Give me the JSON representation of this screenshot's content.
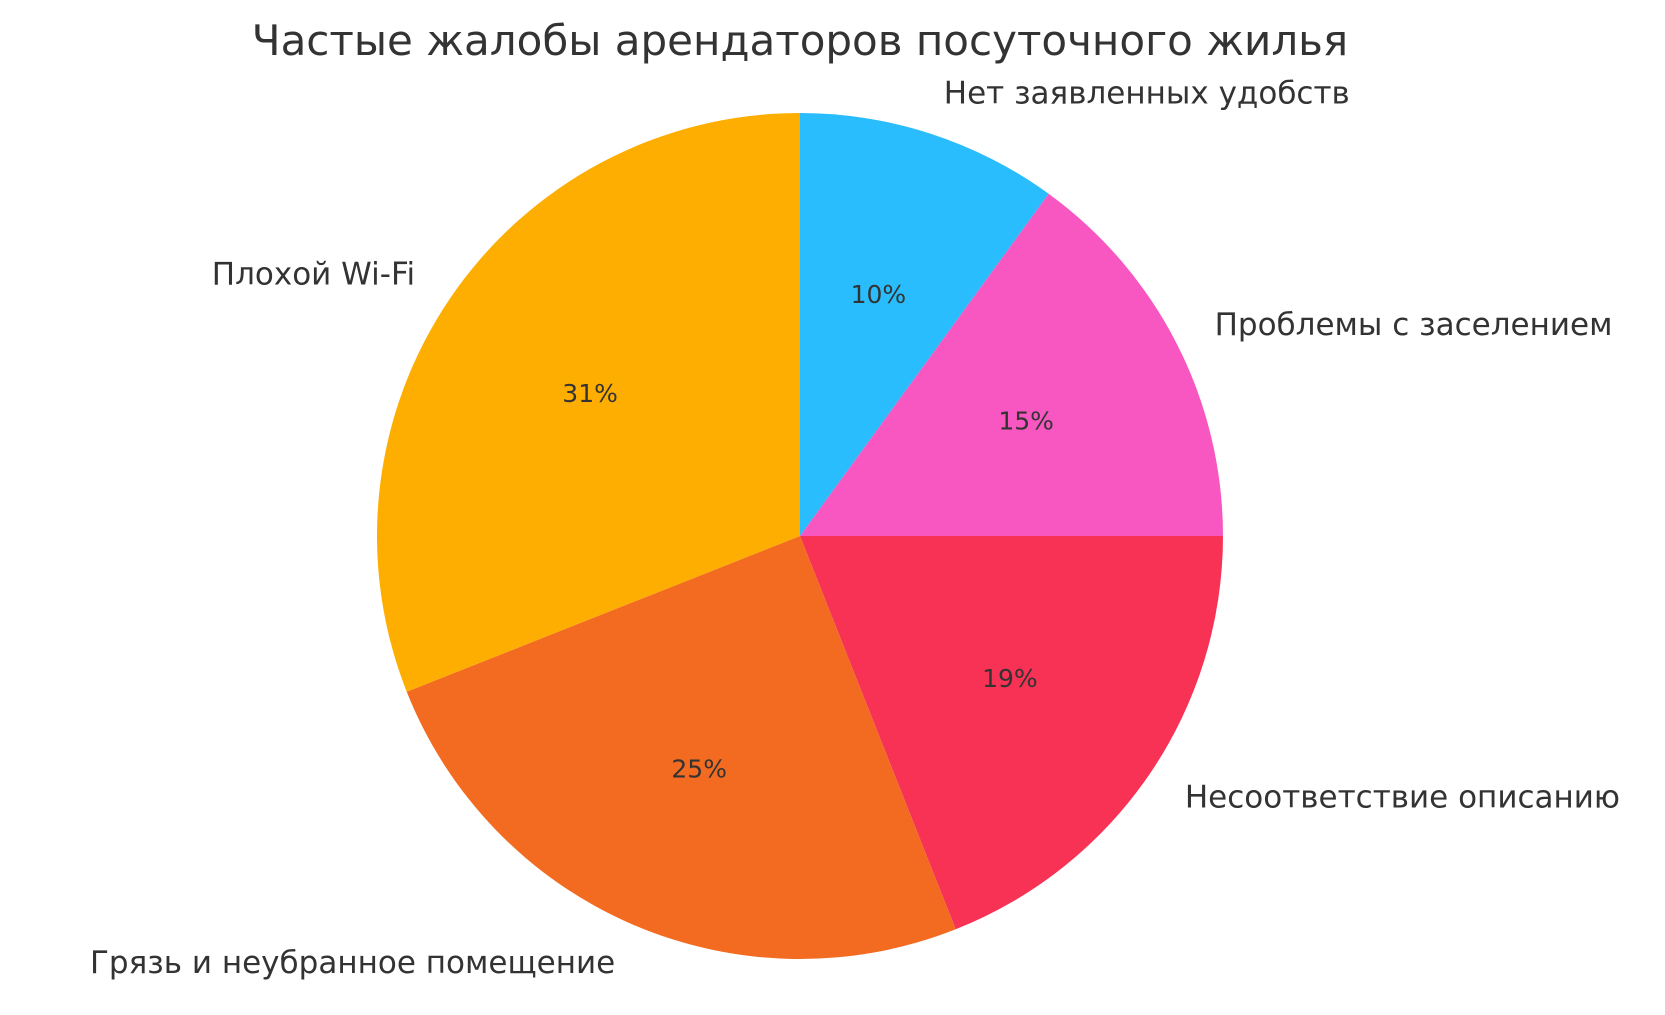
{
  "chart_data": {
    "type": "pie",
    "title": "Частые жалобы арендаторов посуточного жилья",
    "start_angle_deg": 90,
    "direction": "clockwise",
    "slices": [
      {
        "label": "Нет заявленных удобств",
        "value": 10,
        "pct_label": "10%",
        "color": "#29BDFD"
      },
      {
        "label": "Проблемы с заселением",
        "value": 15,
        "pct_label": "15%",
        "color": "#F857C1"
      },
      {
        "label": "Несоответствие описанию",
        "value": 19,
        "pct_label": "19%",
        "color": "#F73255"
      },
      {
        "label": "Грязь и неубранное помещение",
        "value": 25,
        "pct_label": "25%",
        "color": "#F26B21"
      },
      {
        "label": "Плохой Wi-Fi",
        "value": 31,
        "pct_label": "31%",
        "color": "#FEAE00"
      }
    ]
  }
}
